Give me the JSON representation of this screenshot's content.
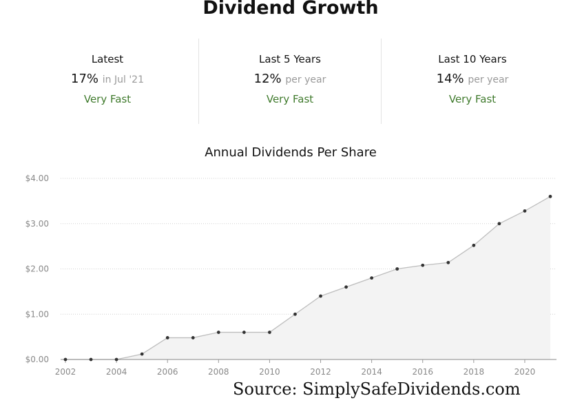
{
  "page": {
    "title": "Dividend Growth",
    "source": "Source: SimplySafeDividends.com"
  },
  "stats": [
    {
      "label": "Latest",
      "value": "17%",
      "unit": "in Jul '21",
      "rating": "Very Fast"
    },
    {
      "label": "Last 5 Years",
      "value": "12%",
      "unit": "per year",
      "rating": "Very Fast"
    },
    {
      "label": "Last 10 Years",
      "value": "14%",
      "unit": "per year",
      "rating": "Very Fast"
    }
  ],
  "colors": {
    "rating_green": "#3f7a2c",
    "line": "#bdbdbd",
    "area_fill": "#f3f3f3",
    "point": "#333333"
  },
  "chart_data": {
    "type": "area",
    "title": "Annual Dividends Per Share",
    "xlabel": "",
    "ylabel": "",
    "x": [
      2002,
      2003,
      2004,
      2005,
      2006,
      2007,
      2008,
      2009,
      2010,
      2011,
      2012,
      2013,
      2014,
      2015,
      2016,
      2017,
      2018,
      2019,
      2020,
      2021
    ],
    "values": [
      0.0,
      0.0,
      0.0,
      0.12,
      0.48,
      0.48,
      0.6,
      0.6,
      0.6,
      1.0,
      1.4,
      1.6,
      1.8,
      2.0,
      2.08,
      2.14,
      2.52,
      3.0,
      3.28,
      3.6
    ],
    "x_ticks": [
      "2002",
      "2004",
      "2006",
      "2008",
      "2010",
      "2012",
      "2014",
      "2016",
      "2018",
      "2020"
    ],
    "y_ticks": [
      "$0.00",
      "$1.00",
      "$2.00",
      "$3.00",
      "$4.00"
    ],
    "xlim": [
      2002,
      2021
    ],
    "ylim": [
      0,
      4
    ],
    "grid": true,
    "legend": "none"
  }
}
